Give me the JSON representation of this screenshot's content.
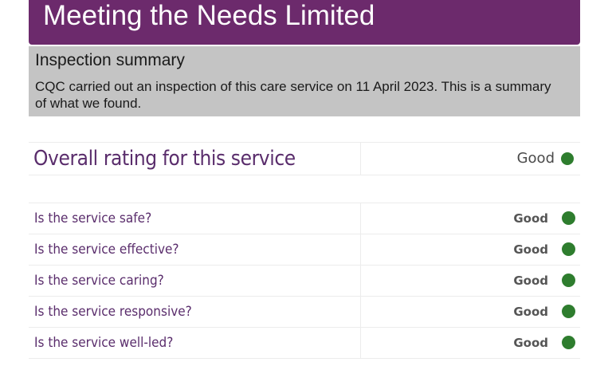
{
  "header": {
    "title": "Meeting the Needs Limited"
  },
  "summary": {
    "heading": "Inspection summary",
    "text": "CQC carried out an inspection of this care service on 11 April 2023. This is a summary of what we found."
  },
  "overall": {
    "label": "Overall rating for this service",
    "rating": "Good",
    "rating_color": "#2e7d2e"
  },
  "questions": [
    {
      "label": "Is the service safe?",
      "rating": "Good"
    },
    {
      "label": "Is the service effective?",
      "rating": "Good"
    },
    {
      "label": "Is the service caring?",
      "rating": "Good"
    },
    {
      "label": "Is the service responsive?",
      "rating": "Good"
    },
    {
      "label": "Is the service well-led?",
      "rating": "Good"
    }
  ],
  "colors": {
    "brand": "#6c2a6c",
    "summary_bg": "#c4c4c4",
    "good": "#2e7d2e"
  }
}
